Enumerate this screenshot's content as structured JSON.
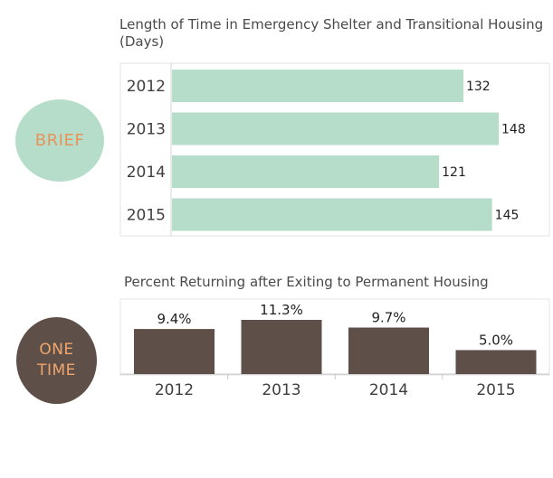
{
  "badges": {
    "brief": "BRIEF",
    "one_time_line1": "ONE",
    "one_time_line2": "TIME"
  },
  "colors": {
    "brief_badge": "#b5ddc9",
    "brief_text": "#e8935a",
    "one_time_badge": "#5e5049",
    "one_time_text": "#f0a56d",
    "bar_green": "#b5ddc9",
    "bar_brown": "#5e5049"
  },
  "chart_data": [
    {
      "type": "bar",
      "orientation": "horizontal",
      "title": "Length of Time in Emergency Shelter and Transitional Housing (Days)",
      "categories": [
        "2012",
        "2013",
        "2014",
        "2015"
      ],
      "values": [
        132,
        148,
        121,
        145
      ],
      "data_labels": [
        "132",
        "148",
        "121",
        "145"
      ],
      "xlim": [
        0,
        148
      ],
      "grid": false
    },
    {
      "type": "bar",
      "orientation": "vertical",
      "title": "Percent Returning after Exiting to Permanent Housing",
      "categories": [
        "2012",
        "2013",
        "2014",
        "2015"
      ],
      "values": [
        9.4,
        11.3,
        9.7,
        5.0
      ],
      "data_labels": [
        "9.4%",
        "11.3%",
        "9.7%",
        "5.0%"
      ],
      "ylim": [
        0,
        11.3
      ],
      "grid": false
    }
  ]
}
